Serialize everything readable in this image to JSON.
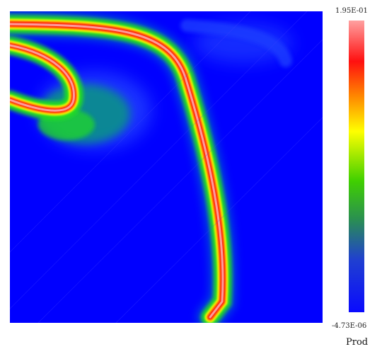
{
  "plot": {
    "background_color": "#0000ff",
    "colormap": [
      "#0000ff",
      "#00cc00",
      "#ffff00",
      "#ff0000",
      "#ffa0a0"
    ]
  },
  "colorbar": {
    "max_label": "1.95E-01",
    "min_label": "-4.73E-06",
    "stops": [
      "#1010ee",
      "#20a030",
      "#50e000",
      "#ffff00",
      "#ff8c00",
      "#ff1010",
      "#ffa0a0"
    ]
  },
  "field_name": "Prod"
}
